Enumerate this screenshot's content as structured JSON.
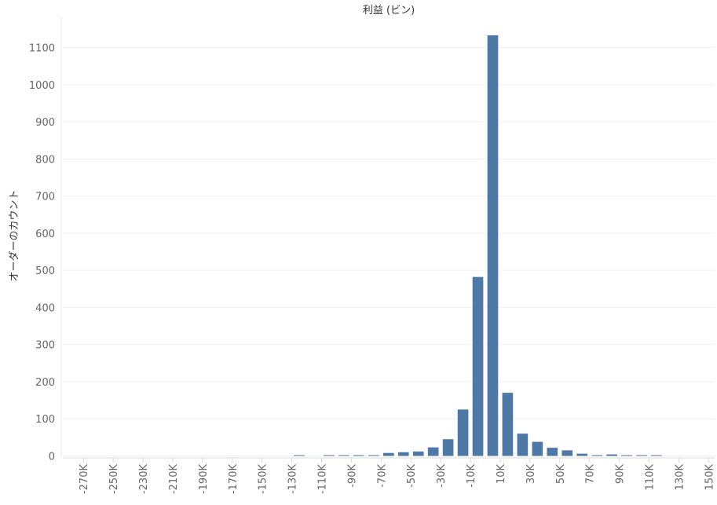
{
  "chart_data": {
    "type": "bar",
    "title": "利益 (ビン)",
    "xlabel": "",
    "ylabel": "オーダーのカウント",
    "ylim": [
      -20,
      1150
    ],
    "grid": true,
    "bar_color": "#4e79a7",
    "yticks": [
      0,
      100,
      200,
      300,
      400,
      500,
      600,
      700,
      800,
      900,
      1000,
      1100
    ],
    "xtick_labels": [
      "-270K",
      "-250K",
      "-230K",
      "-210K",
      "-190K",
      "-170K",
      "-150K",
      "-130K",
      "-110K",
      "-90K",
      "-70K",
      "-50K",
      "-30K",
      "-10K",
      "10K",
      "30K",
      "50K",
      "70K",
      "90K",
      "110K",
      "130K",
      "150K"
    ],
    "bins": [
      {
        "bin": -125,
        "count": 1
      },
      {
        "bin": -105,
        "count": 0
      },
      {
        "bin": -95,
        "count": 1
      },
      {
        "bin": -85,
        "count": 1
      },
      {
        "bin": -75,
        "count": 1
      },
      {
        "bin": -65,
        "count": 8
      },
      {
        "bin": -55,
        "count": 10
      },
      {
        "bin": -45,
        "count": 12
      },
      {
        "bin": -35,
        "count": 23
      },
      {
        "bin": -25,
        "count": 45
      },
      {
        "bin": -15,
        "count": 125
      },
      {
        "bin": -5,
        "count": 482
      },
      {
        "bin": 5,
        "count": 1133
      },
      {
        "bin": 15,
        "count": 170
      },
      {
        "bin": 25,
        "count": 60
      },
      {
        "bin": 35,
        "count": 38
      },
      {
        "bin": 45,
        "count": 22
      },
      {
        "bin": 55,
        "count": 15
      },
      {
        "bin": 65,
        "count": 6
      },
      {
        "bin": 75,
        "count": 2
      },
      {
        "bin": 85,
        "count": 4
      },
      {
        "bin": 95,
        "count": 1
      },
      {
        "bin": 105,
        "count": 1
      },
      {
        "bin": 115,
        "count": 1
      }
    ]
  }
}
